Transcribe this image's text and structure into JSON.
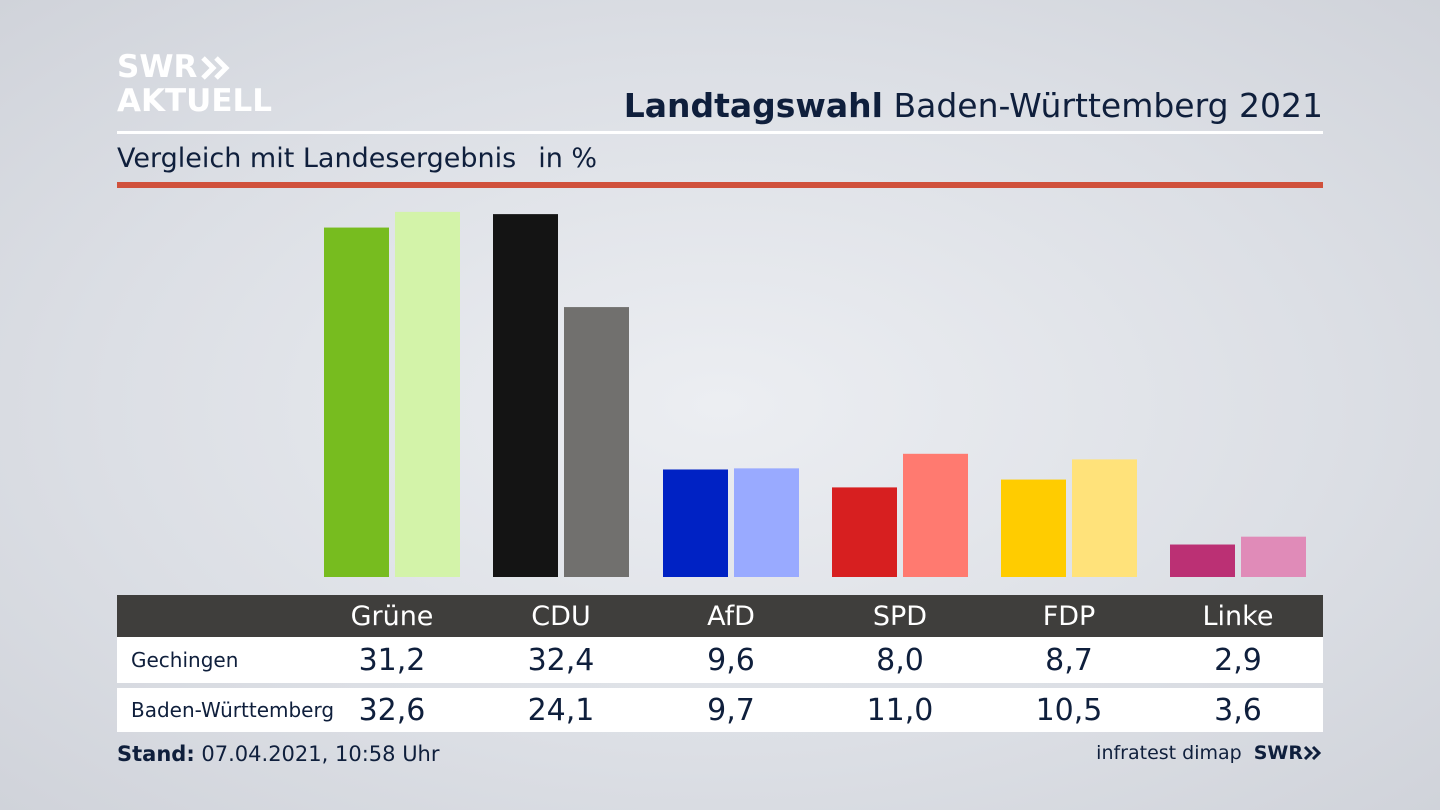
{
  "logo": {
    "line1": "SWR",
    "line2": "AKTUELL"
  },
  "header": {
    "title_bold": "Landtagswahl",
    "title_rest": "Baden-Württemberg 2021"
  },
  "subheader": {
    "text": "Vergleich mit Landesergebnis",
    "unit": "in %"
  },
  "colors": {
    "accent_rule": "#d0513c",
    "table_header": "#3f3e3c"
  },
  "chart_data": {
    "type": "bar",
    "title": "Landtagswahl Baden-Württemberg 2021",
    "subtitle": "Vergleich mit Landesergebnis",
    "ylabel": "in %",
    "xlabel": "",
    "ylim": [
      0,
      33
    ],
    "categories": [
      "Grüne",
      "CDU",
      "AfD",
      "SPD",
      "FDP",
      "Linke"
    ],
    "series": [
      {
        "name": "Gechingen",
        "values": [
          31.2,
          32.4,
          9.6,
          8.0,
          8.7,
          2.9
        ],
        "colors": [
          "#77bc1f",
          "#141414",
          "#0022c4",
          "#d71f20",
          "#ffcc00",
          "#bb3074"
        ]
      },
      {
        "name": "Baden-Württemberg",
        "values": [
          32.6,
          24.1,
          9.7,
          11.0,
          10.5,
          3.6
        ],
        "colors": [
          "#d3f3a9",
          "#71706e",
          "#99aaff",
          "#ff7a70",
          "#ffe27a",
          "#e08bb8"
        ]
      }
    ]
  },
  "table": {
    "headers": [
      "Grüne",
      "CDU",
      "AfD",
      "SPD",
      "FDP",
      "Linke"
    ],
    "rows": [
      {
        "label": "Gechingen",
        "values": [
          "31,2",
          "32,4",
          "9,6",
          "8,0",
          "8,7",
          "2,9"
        ]
      },
      {
        "label": "Baden-Württemberg",
        "values": [
          "32,6",
          "24,1",
          "9,7",
          "11,0",
          "10,5",
          "3,6"
        ]
      }
    ]
  },
  "footer": {
    "stand_label": "Stand:",
    "stand_value": "07.04.2021, 10:58 Uhr",
    "source": "infratest dimap",
    "brand": "SWR"
  }
}
